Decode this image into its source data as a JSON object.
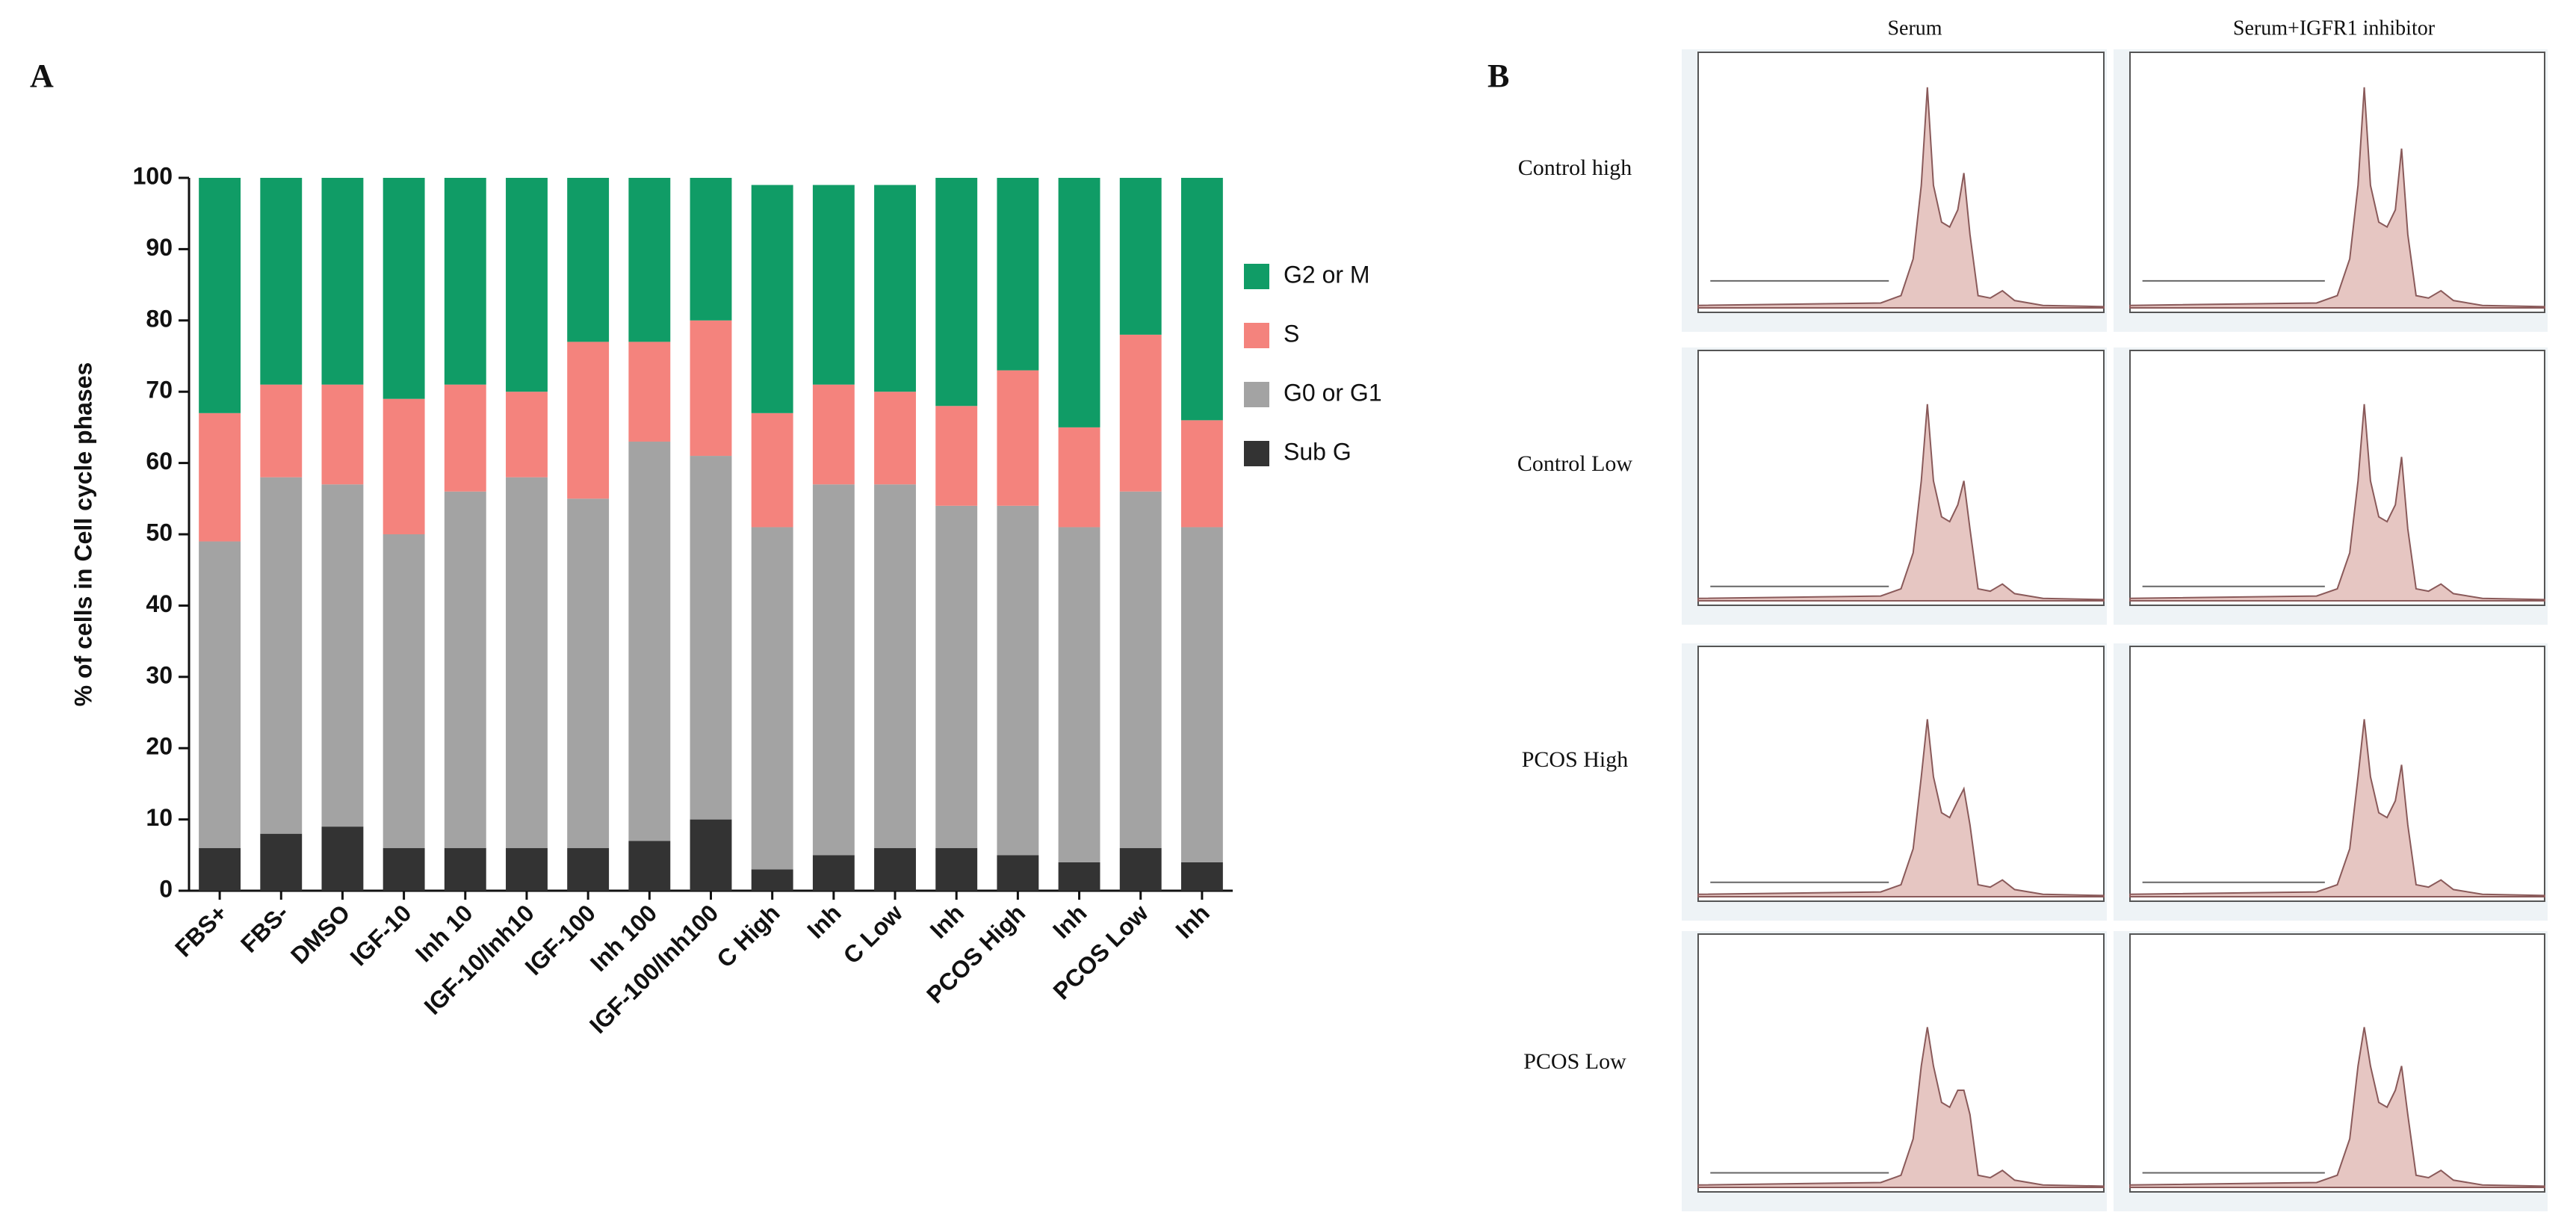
{
  "chart_data": {
    "type": "stacked_bar",
    "panel_label": "A",
    "y_label": "% of cells in Cell cycle phases",
    "categories": [
      "FBS+",
      "FBS-",
      "DMSO",
      "IGF-10",
      "Inh 10",
      "IGF-10/Inh10",
      "IGF-100",
      "Inh 100",
      "IGF-100/Inh100",
      "C High",
      "Inh",
      "C Low",
      "Inh",
      "PCOS High",
      "Inh",
      "PCOS Low",
      "Inh"
    ],
    "series": [
      {
        "name": "Sub G",
        "color": "#333333",
        "values": [
          6,
          8,
          9,
          6,
          6,
          6,
          6,
          7,
          10,
          3,
          5,
          6,
          6,
          5,
          4,
          6,
          4
        ]
      },
      {
        "name": "G0 or G1",
        "color": "#a3a3a3",
        "values": [
          43,
          50,
          48,
          44,
          50,
          52,
          49,
          56,
          51,
          48,
          52,
          51,
          48,
          49,
          47,
          50,
          47
        ]
      },
      {
        "name": "S",
        "color": "#f4837d",
        "values": [
          18,
          13,
          14,
          19,
          15,
          12,
          22,
          14,
          19,
          16,
          14,
          13,
          14,
          19,
          14,
          22,
          15
        ]
      },
      {
        "name": "G2 or M",
        "color": "#109c66",
        "values": [
          33,
          29,
          29,
          31,
          29,
          30,
          23,
          23,
          20,
          32,
          28,
          29,
          32,
          27,
          35,
          22,
          34
        ]
      }
    ],
    "ylim": [
      0,
      100
    ],
    "yticks": [
      0,
      10,
      20,
      30,
      40,
      50,
      60,
      70,
      80,
      90,
      100
    ],
    "legend": "right"
  },
  "panel_b": {
    "label": "B",
    "columns": [
      "Serum",
      "Serum+IGFR1 inhibitor"
    ],
    "rows": [
      "Control high",
      "Control Low",
      "PCOS High",
      "PCOS Low"
    ]
  }
}
